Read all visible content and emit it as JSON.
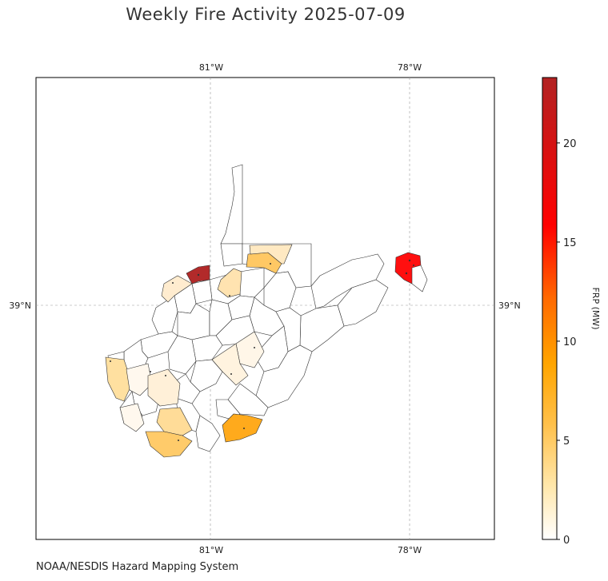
{
  "title": "Weekly Fire Activity 2025-07-09",
  "source": "NOAA/NESDIS Hazard Mapping System",
  "map": {
    "lon_ticks": [
      "81°W",
      "78°W"
    ],
    "lat_ticks": [
      "39°N"
    ],
    "gridlines": true
  },
  "colorbar": {
    "label": "FRP (MW)",
    "ticks": [
      "0",
      "5",
      "10",
      "15",
      "20"
    ],
    "range": [
      0,
      23.3
    ],
    "colors": [
      "#ffffff",
      "#ffe6a8",
      "#ffc04a",
      "#ffa500",
      "#ff6a00",
      "#ff0000",
      "#b22222"
    ]
  },
  "legend_note": "",
  "colors": {
    "low": "#fff5e6",
    "mid_low": "#ffd27a",
    "mid": "#ffa500",
    "high": "#ff0000",
    "max": "#b22222",
    "border": "#333333"
  }
}
